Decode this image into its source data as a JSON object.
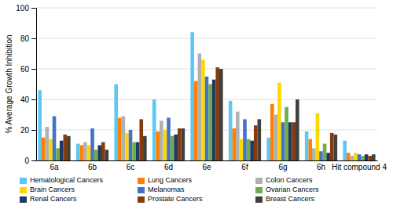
{
  "chart_data": {
    "type": "bar",
    "categories": [
      "6a",
      "6b",
      "6c",
      "6d",
      "6e",
      "6f",
      "6g",
      "6h",
      "Hit compound 4"
    ],
    "series": [
      {
        "name": "Hematological Cancers",
        "color": "#5BC8F5",
        "values": [
          46,
          11,
          50,
          40,
          84,
          39,
          15,
          19,
          13
        ]
      },
      {
        "name": "Lung Cancers",
        "color": "#FF8000",
        "values": [
          15,
          10,
          28,
          19,
          52,
          21,
          37,
          14,
          5
        ]
      },
      {
        "name": "Colon Cancers",
        "color": "#B0B0B0",
        "values": [
          22,
          12,
          29,
          26,
          70,
          32,
          30,
          8,
          3
        ]
      },
      {
        "name": "Brain Cancers",
        "color": "#FFD700",
        "values": [
          14,
          10,
          18,
          20,
          66,
          14,
          51,
          31,
          5
        ]
      },
      {
        "name": "Melanomas",
        "color": "#4472C4",
        "values": [
          29,
          21,
          20,
          28,
          55,
          27,
          25,
          6,
          4
        ]
      },
      {
        "name": "Ovarian Cancers",
        "color": "#70AD47",
        "values": [
          8,
          7,
          12,
          16,
          50,
          14,
          35,
          11,
          3
        ]
      },
      {
        "name": "Renal Cancers",
        "color": "#203864",
        "values": [
          13,
          10,
          12,
          17,
          53,
          13,
          25,
          5,
          4
        ]
      },
      {
        "name": "Prostate Cancers",
        "color": "#843C0C",
        "values": [
          17,
          12,
          27,
          21,
          61,
          23,
          25,
          18,
          3
        ]
      },
      {
        "name": "Breast Cancers",
        "color": "#404040",
        "values": [
          16,
          7,
          16,
          21,
          60,
          27,
          40,
          17,
          4
        ]
      }
    ],
    "ylabel": "% Average Growth Inhibition",
    "ylim": [
      0,
      100
    ],
    "yticks": [
      0,
      20,
      40,
      60,
      80,
      100
    ],
    "grid": true,
    "legend": "bottom"
  }
}
